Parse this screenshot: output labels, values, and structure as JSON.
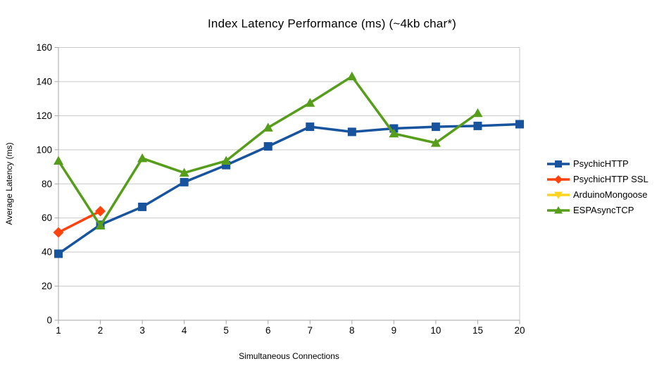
{
  "chart_data": {
    "type": "line",
    "title": "Index Latency Performance (ms) (~4kb char*)",
    "xlabel": "Simultaneous Connections",
    "ylabel": "Average Latency (ms)",
    "categories": [
      "1",
      "2",
      "3",
      "4",
      "5",
      "6",
      "7",
      "8",
      "9",
      "10",
      "15",
      "20"
    ],
    "ylim": [
      0,
      160
    ],
    "ytick_step": 20,
    "grid": true,
    "legend_position": "right",
    "series": [
      {
        "name": "PsychicHTTP",
        "color": "#17549D",
        "marker": "square",
        "values": [
          39,
          56,
          66.5,
          81,
          91,
          102,
          113.5,
          110.5,
          112.5,
          113.5,
          114,
          115
        ]
      },
      {
        "name": "PsychicHTTP SSL",
        "color": "#FF420E",
        "marker": "diamond",
        "values": [
          51.5,
          64,
          null,
          null,
          null,
          null,
          null,
          null,
          null,
          null,
          null,
          null
        ]
      },
      {
        "name": "ArduinoMongoose",
        "color": "#FFD320",
        "marker": "triangle-down",
        "values": [
          null,
          null,
          null,
          null,
          null,
          null,
          null,
          null,
          null,
          null,
          null,
          null
        ]
      },
      {
        "name": "ESPAsyncTCP",
        "color": "#579D1C",
        "marker": "triangle-up",
        "values": [
          93.5,
          55.5,
          95,
          86.5,
          93.5,
          113,
          127.5,
          143,
          109.5,
          104,
          121.5,
          null
        ]
      }
    ],
    "colors": {
      "background": "#ffffff",
      "gridline": "#c8c8c8",
      "axis": "#a6a6a6",
      "text": "#000000"
    }
  }
}
